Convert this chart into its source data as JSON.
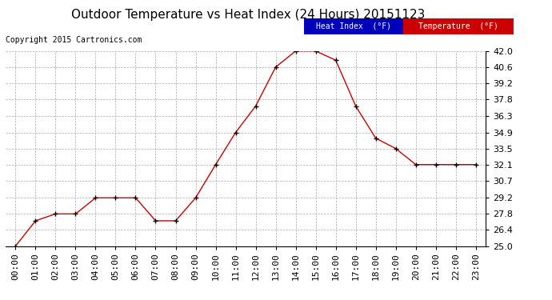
{
  "title": "Outdoor Temperature vs Heat Index (24 Hours) 20151123",
  "copyright": "Copyright 2015 Cartronics.com",
  "hours": [
    "00:00",
    "01:00",
    "02:00",
    "03:00",
    "04:00",
    "05:00",
    "06:00",
    "07:00",
    "08:00",
    "09:00",
    "10:00",
    "11:00",
    "12:00",
    "13:00",
    "14:00",
    "15:00",
    "16:00",
    "17:00",
    "18:00",
    "19:00",
    "20:00",
    "21:00",
    "22:00",
    "23:00"
  ],
  "temperature": [
    25.0,
    27.2,
    27.8,
    27.8,
    29.2,
    29.2,
    29.2,
    27.2,
    27.2,
    29.2,
    32.1,
    34.9,
    37.2,
    40.6,
    42.0,
    42.0,
    41.2,
    37.2,
    34.4,
    33.5,
    32.1,
    32.1,
    32.1,
    32.1
  ],
  "heat_index": [
    25.0,
    27.2,
    27.8,
    27.8,
    29.2,
    29.2,
    29.2,
    27.2,
    27.2,
    29.2,
    32.1,
    34.9,
    37.2,
    40.6,
    42.0,
    42.0,
    41.2,
    37.2,
    34.4,
    33.5,
    32.1,
    32.1,
    32.1,
    32.1
  ],
  "ylim": [
    25.0,
    42.0
  ],
  "yticks": [
    25.0,
    26.4,
    27.8,
    29.2,
    30.7,
    32.1,
    33.5,
    34.9,
    36.3,
    37.8,
    39.2,
    40.6,
    42.0
  ],
  "temp_color": "#cc0000",
  "heat_index_color": "#000000",
  "bg_color": "#ffffff",
  "grid_color": "#aaaaaa",
  "legend_heat_bg": "#0000bb",
  "legend_temp_bg": "#cc0000",
  "title_fontsize": 11,
  "copyright_fontsize": 7,
  "tick_fontsize": 8
}
